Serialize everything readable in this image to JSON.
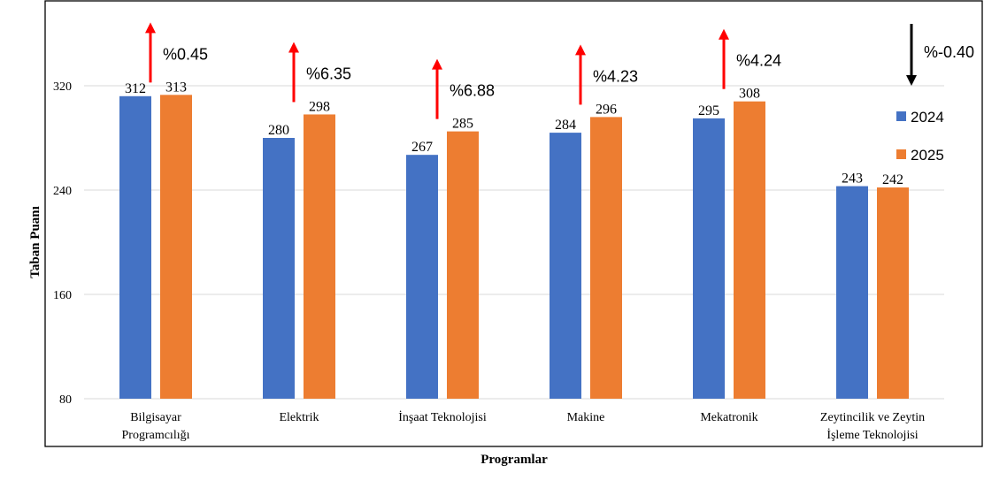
{
  "chart_data": {
    "type": "bar",
    "title": "",
    "xlabel": "Programlar",
    "ylabel": "Taban Puanı",
    "ylim": [
      80,
      320
    ],
    "yticks": [
      80,
      160,
      240,
      320
    ],
    "grid": true,
    "legend_position": "right",
    "categories": [
      "Bilgisayar Programcılığı",
      "Elektrik",
      "İnşaat Teknolojisi",
      "Makine",
      "Mekatronik",
      "Zeytincilik ve Zeytin İşleme Teknolojisi"
    ],
    "category_lines": [
      [
        "Bilgisayar",
        "Programcılığı"
      ],
      [
        "Elektrik"
      ],
      [
        "İnşaat Teknolojisi"
      ],
      [
        "Makine"
      ],
      [
        "Mekatronik"
      ],
      [
        "Zeytincilik ve Zeytin",
        "İşleme Teknolojisi"
      ]
    ],
    "series": [
      {
        "name": "2024",
        "color": "#4472C4",
        "values": [
          312,
          280,
          267,
          284,
          295,
          243
        ]
      },
      {
        "name": "2025",
        "color": "#ED7D31",
        "values": [
          313,
          298,
          285,
          296,
          308,
          242
        ]
      }
    ],
    "annotations": [
      {
        "text": "%0.45",
        "direction": "up",
        "color": "#FF0000"
      },
      {
        "text": "%6.35",
        "direction": "up",
        "color": "#FF0000"
      },
      {
        "text": "%6.88",
        "direction": "up",
        "color": "#FF0000"
      },
      {
        "text": "%4.23",
        "direction": "up",
        "color": "#FF0000"
      },
      {
        "text": "%4.24",
        "direction": "up",
        "color": "#FF0000"
      },
      {
        "text": "%-0.40",
        "direction": "down",
        "color": "#000000"
      }
    ]
  }
}
